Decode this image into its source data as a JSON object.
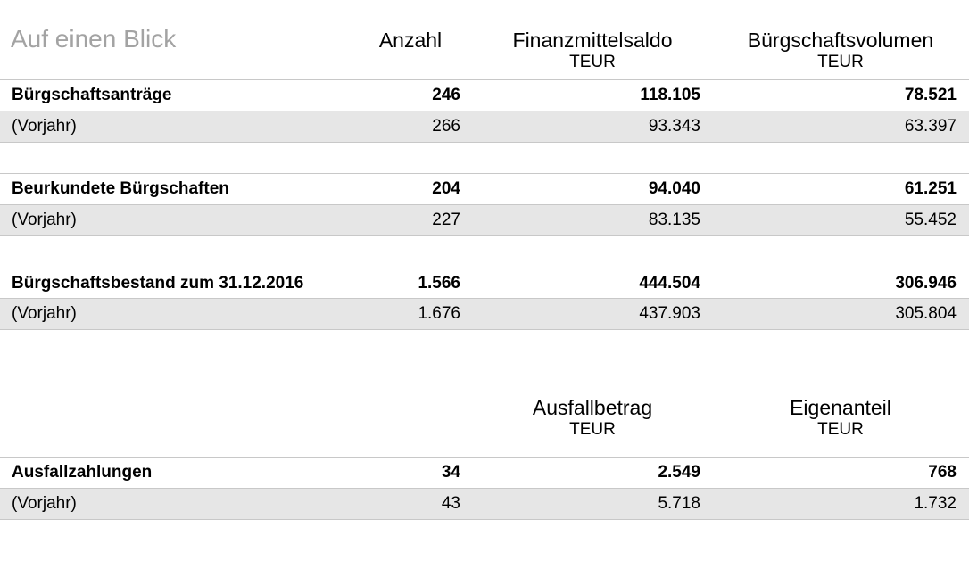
{
  "title": "Auf einen Blick",
  "headers1": {
    "anzahl": "Anzahl",
    "finanz": "Finanzmittelsaldo",
    "finanz_unit": "TEUR",
    "volumen": "Bürgschaftsvolumen",
    "volumen_unit": "TEUR"
  },
  "sections": [
    {
      "main": {
        "label": "Bürgschaftsanträge",
        "anzahl": "246",
        "finanz": "118.105",
        "volumen": "78.521"
      },
      "prev": {
        "label": "(Vorjahr)",
        "anzahl": "266",
        "finanz": "93.343",
        "volumen": "63.397"
      }
    },
    {
      "main": {
        "label": "Beurkundete Bürgschaften",
        "anzahl": "204",
        "finanz": "94.040",
        "volumen": "61.251"
      },
      "prev": {
        "label": "(Vorjahr)",
        "anzahl": "227",
        "finanz": "83.135",
        "volumen": "55.452"
      }
    },
    {
      "main": {
        "label": "Bürgschaftsbestand zum 31.12.2016",
        "anzahl": "1.566",
        "finanz": "444.504",
        "volumen": "306.946"
      },
      "prev": {
        "label": "(Vorjahr)",
        "anzahl": "1.676",
        "finanz": "437.903",
        "volumen": "305.804"
      }
    }
  ],
  "headers2": {
    "ausfall": "Ausfallbetrag",
    "ausfall_unit": "TEUR",
    "eigen": "Eigenanteil",
    "eigen_unit": "TEUR"
  },
  "ausfall_section": {
    "main": {
      "label": "Ausfallzahlungen",
      "anzahl": "34",
      "ausfall": "2.549",
      "eigen": "768"
    },
    "prev": {
      "label": "(Vorjahr)",
      "anzahl": "43",
      "ausfall": "5.718",
      "eigen": "1.732"
    }
  }
}
